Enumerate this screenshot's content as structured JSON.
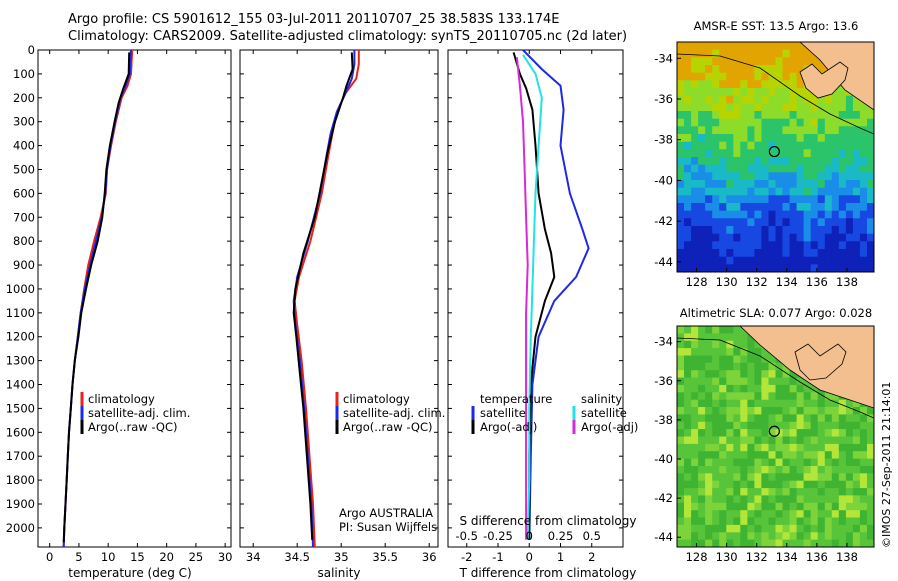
{
  "header": {
    "line1": "Argo profile: CS 5901612_155 03-Jul-2011 20110707_25 38.583S 133.174E",
    "line2": "Climatology: CARS2009. Satellite-adjusted climatology: synTS_20110705.nc (2d later)"
  },
  "colors": {
    "red": "#e8231b",
    "blue": "#1d29e6",
    "black": "#000000",
    "cyan": "#20e3e3",
    "magenta": "#d62ad6"
  },
  "chart_data": [
    {
      "type": "line",
      "id": "temperature",
      "xlabel": "temperature (deg C)",
      "xlim": [
        -2,
        31
      ],
      "ylim": [
        2080,
        0
      ],
      "x_ticks": [
        0,
        5,
        10,
        15,
        20,
        25,
        30
      ],
      "y_ticks": [
        0,
        100,
        200,
        300,
        400,
        500,
        600,
        700,
        800,
        900,
        1000,
        1100,
        1200,
        1300,
        1400,
        1500,
        1600,
        1700,
        1800,
        1900,
        2000
      ],
      "legend": [
        "climatology",
        "satellite-adj. clim.",
        "Argo(..raw -QC)"
      ],
      "series": [
        {
          "name": "climatology",
          "color": "red",
          "points": [
            [
              14.1,
              0
            ],
            [
              14.0,
              50
            ],
            [
              13.9,
              100
            ],
            [
              13.3,
              150
            ],
            [
              12.3,
              200
            ],
            [
              11.3,
              300
            ],
            [
              10.5,
              400
            ],
            [
              9.8,
              500
            ],
            [
              9.6,
              600
            ],
            [
              8.7,
              700
            ],
            [
              7.6,
              800
            ],
            [
              6.6,
              900
            ],
            [
              5.9,
              1000
            ],
            [
              5.3,
              1100
            ],
            [
              4.8,
              1200
            ],
            [
              4.3,
              1300
            ],
            [
              3.9,
              1400
            ],
            [
              3.6,
              1500
            ],
            [
              3.3,
              1600
            ],
            [
              3.1,
              1700
            ],
            [
              2.9,
              1800
            ],
            [
              2.7,
              1900
            ],
            [
              2.5,
              2000
            ],
            [
              2.4,
              2080
            ]
          ]
        },
        {
          "name": "satellite-adj. clim.",
          "color": "blue",
          "points": [
            [
              13.9,
              0
            ],
            [
              13.8,
              50
            ],
            [
              13.7,
              100
            ],
            [
              13.0,
              150
            ],
            [
              12.1,
              200
            ],
            [
              11.2,
              300
            ],
            [
              10.4,
              400
            ],
            [
              9.8,
              500
            ],
            [
              9.5,
              600
            ],
            [
              8.9,
              700
            ],
            [
              7.9,
              800
            ],
            [
              6.9,
              900
            ],
            [
              6.0,
              1000
            ],
            [
              5.3,
              1100
            ],
            [
              4.8,
              1200
            ],
            [
              4.3,
              1300
            ],
            [
              3.9,
              1400
            ],
            [
              3.6,
              1500
            ],
            [
              3.3,
              1600
            ],
            [
              3.1,
              1700
            ],
            [
              2.9,
              1800
            ],
            [
              2.7,
              1900
            ],
            [
              2.5,
              2000
            ],
            [
              2.4,
              2080
            ]
          ]
        },
        {
          "name": "Argo(..raw -QC)",
          "color": "black",
          "points": [
            [
              13.6,
              10
            ],
            [
              13.5,
              100
            ],
            [
              12.6,
              160
            ],
            [
              11.8,
              220
            ],
            [
              11.1,
              300
            ],
            [
              10.3,
              400
            ],
            [
              9.7,
              500
            ],
            [
              9.4,
              600
            ],
            [
              9.0,
              700
            ],
            [
              8.2,
              800
            ],
            [
              7.1,
              900
            ],
            [
              6.2,
              1000
            ],
            [
              5.4,
              1100
            ],
            [
              4.9,
              1200
            ],
            [
              4.3,
              1300
            ],
            [
              3.9,
              1400
            ],
            [
              3.6,
              1500
            ],
            [
              3.3,
              1600
            ],
            [
              3.1,
              1700
            ],
            [
              2.9,
              1800
            ],
            [
              2.7,
              1900
            ],
            [
              2.5,
              2000
            ],
            [
              2.4,
              2060
            ]
          ]
        }
      ]
    },
    {
      "type": "line",
      "id": "salinity",
      "xlabel": "salinity",
      "xlim": [
        33.85,
        36.1
      ],
      "ylim": [
        2080,
        0
      ],
      "x_ticks": [
        34,
        34.5,
        35,
        35.5,
        36
      ],
      "legend": [
        "climatology",
        "satellite-adj. clim.",
        "Argo(..raw -QC)"
      ],
      "note1": "Argo AUSTRALIA",
      "note2": "PI: Susan Wijffels",
      "series": [
        {
          "name": "climatology",
          "color": "red",
          "points": [
            [
              35.2,
              0
            ],
            [
              35.2,
              60
            ],
            [
              35.17,
              120
            ],
            [
              35.05,
              180
            ],
            [
              34.95,
              260
            ],
            [
              34.9,
              350
            ],
            [
              34.85,
              450
            ],
            [
              34.78,
              600
            ],
            [
              34.65,
              800
            ],
            [
              34.52,
              950
            ],
            [
              34.47,
              1050
            ],
            [
              34.5,
              1150
            ],
            [
              34.55,
              1300
            ],
            [
              34.6,
              1500
            ],
            [
              34.64,
              1700
            ],
            [
              34.68,
              1900
            ],
            [
              34.7,
              2080
            ]
          ]
        },
        {
          "name": "satellite-adj. clim.",
          "color": "blue",
          "points": [
            [
              35.15,
              0
            ],
            [
              35.15,
              60
            ],
            [
              35.12,
              120
            ],
            [
              35.05,
              180
            ],
            [
              34.95,
              260
            ],
            [
              34.88,
              350
            ],
            [
              34.83,
              450
            ],
            [
              34.76,
              600
            ],
            [
              34.62,
              800
            ],
            [
              34.5,
              950
            ],
            [
              34.46,
              1050
            ],
            [
              34.48,
              1150
            ],
            [
              34.53,
              1300
            ],
            [
              34.58,
              1500
            ],
            [
              34.62,
              1700
            ],
            [
              34.66,
              1900
            ],
            [
              34.68,
              2080
            ]
          ]
        },
        {
          "name": "Argo(..raw -QC)",
          "color": "black",
          "points": [
            [
              35.12,
              10
            ],
            [
              35.13,
              80
            ],
            [
              35.06,
              150
            ],
            [
              35.02,
              200
            ],
            [
              34.93,
              300
            ],
            [
              34.85,
              420
            ],
            [
              34.78,
              550
            ],
            [
              34.7,
              700
            ],
            [
              34.57,
              850
            ],
            [
              34.48,
              1000
            ],
            [
              34.46,
              1100
            ],
            [
              34.49,
              1200
            ],
            [
              34.53,
              1350
            ],
            [
              34.57,
              1500
            ],
            [
              34.61,
              1700
            ],
            [
              34.65,
              1900
            ],
            [
              34.67,
              2050
            ]
          ]
        }
      ]
    },
    {
      "type": "line",
      "id": "difference",
      "xlabel": "T difference from climatology",
      "xlabel_top": "S difference from climatology",
      "xlim": [
        -2.6,
        3.0
      ],
      "ylim": [
        2080,
        0
      ],
      "x_ticks": [
        -2,
        -1,
        0,
        1,
        2
      ],
      "x_ticks_top": [
        "-0.5",
        "-0.25",
        "0",
        "0.25",
        "0.5"
      ],
      "legend_temperature": {
        "title": "temperature",
        "items": [
          "satellite",
          "Argo(-adj)"
        ]
      },
      "legend_salinity": {
        "title": "salinity",
        "items": [
          "satellite",
          "Argo(-adj)"
        ]
      },
      "series": [
        {
          "name": "temperature satellite",
          "color": "blue",
          "points": [
            [
              -0.2,
              0
            ],
            [
              0.4,
              80
            ],
            [
              1.0,
              150
            ],
            [
              1.1,
              250
            ],
            [
              1.0,
              400
            ],
            [
              1.3,
              600
            ],
            [
              1.7,
              750
            ],
            [
              1.9,
              830
            ],
            [
              1.5,
              950
            ],
            [
              0.8,
              1050
            ],
            [
              0.3,
              1200
            ],
            [
              0.1,
              1400
            ],
            [
              0.05,
              1700
            ],
            [
              0.0,
              2050
            ]
          ]
        },
        {
          "name": "temperature Argo(-adj)",
          "color": "black",
          "points": [
            [
              -0.5,
              10
            ],
            [
              -0.3,
              100
            ],
            [
              -0.1,
              160
            ],
            [
              0.1,
              250
            ],
            [
              0.2,
              400
            ],
            [
              0.3,
              600
            ],
            [
              0.5,
              750
            ],
            [
              0.7,
              850
            ],
            [
              0.8,
              950
            ],
            [
              0.5,
              1050
            ],
            [
              0.2,
              1200
            ],
            [
              0.05,
              1400
            ],
            [
              0.0,
              1700
            ],
            [
              0.0,
              2050
            ]
          ]
        },
        {
          "name": "salinity satellite",
          "color": "cyan",
          "points": [
            [
              -0.2,
              20
            ],
            [
              0.2,
              100
            ],
            [
              0.4,
              200
            ],
            [
              0.3,
              400
            ],
            [
              0.2,
              600
            ],
            [
              0.15,
              800
            ],
            [
              0.1,
              1000
            ],
            [
              0.05,
              1200
            ],
            [
              0.0,
              1500
            ],
            [
              0.0,
              1800
            ],
            [
              -0.05,
              2050
            ]
          ]
        },
        {
          "name": "salinity Argo(-adj)",
          "color": "magenta",
          "points": [
            [
              -0.4,
              30
            ],
            [
              -0.3,
              150
            ],
            [
              -0.2,
              300
            ],
            [
              -0.15,
              500
            ],
            [
              -0.1,
              700
            ],
            [
              -0.05,
              900
            ],
            [
              -0.1,
              1100
            ],
            [
              -0.1,
              1300
            ],
            [
              -0.1,
              1500
            ],
            [
              -0.1,
              1700
            ],
            [
              -0.1,
              1900
            ],
            [
              -0.1,
              2050
            ]
          ]
        }
      ]
    },
    {
      "type": "heatmap",
      "id": "sst_map",
      "title": "AMSR-E SST: 13.5 Argo: 13.6",
      "xlim": [
        126.7,
        139.8
      ],
      "ylim": [
        -44.5,
        -33.2
      ],
      "x_ticks": [
        128,
        130,
        132,
        134,
        136,
        138
      ],
      "y_ticks": [
        -34,
        -36,
        -38,
        -40,
        -42,
        -44
      ],
      "argo_position": [
        133.174,
        -38.583
      ]
    },
    {
      "type": "heatmap",
      "id": "sla_map",
      "title": "Altimetric SLA: 0.077 Argo: 0.028",
      "xlim": [
        126.7,
        139.8
      ],
      "ylim": [
        -44.5,
        -33.2
      ],
      "x_ticks": [
        128,
        130,
        132,
        134,
        136,
        138
      ],
      "y_ticks": [
        -34,
        -36,
        -38,
        -40,
        -42,
        -44
      ],
      "argo_position": [
        133.174,
        -38.583
      ]
    }
  ],
  "stamp": "©IMOS 27-Sep-2011 21:14:01"
}
